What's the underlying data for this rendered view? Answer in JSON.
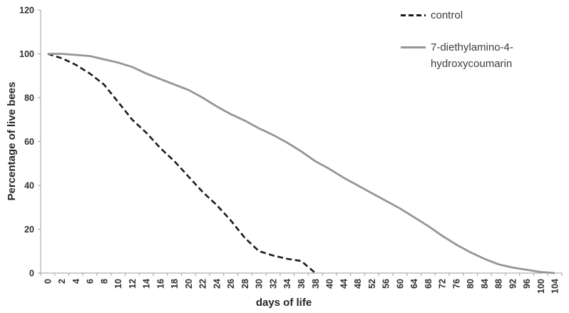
{
  "chart_data": {
    "type": "line",
    "title": "",
    "xlabel": "days of life",
    "ylabel": "Percentage of live bees",
    "ylim": [
      0,
      120
    ],
    "yticks": [
      0,
      20,
      40,
      60,
      80,
      100,
      120
    ],
    "grid": false,
    "legend_position": "top-right",
    "categories": [
      0,
      2,
      4,
      6,
      8,
      10,
      12,
      14,
      16,
      18,
      20,
      22,
      24,
      26,
      28,
      30,
      32,
      34,
      36,
      38,
      40,
      44,
      48,
      52,
      56,
      60,
      64,
      68,
      72,
      76,
      80,
      84,
      88,
      92,
      96,
      100,
      104
    ],
    "series": [
      {
        "name": "control",
        "line_style": "dashed",
        "color": "#1c1c1c",
        "values": [
          100,
          98,
          95,
          91,
          86,
          78,
          70,
          64,
          57,
          51,
          44,
          37,
          31,
          24,
          16,
          10,
          8,
          6.5,
          5.5,
          0,
          null,
          null,
          null,
          null,
          null,
          null,
          null,
          null,
          null,
          null,
          null,
          null,
          null,
          null,
          null,
          null,
          null
        ]
      },
      {
        "name": "7-diethylamino-4-hydroxycoumarin",
        "line_style": "solid",
        "color": "#969696",
        "values": [
          100,
          100,
          99.5,
          99,
          97.5,
          96,
          94,
          91,
          88.5,
          86,
          83.5,
          80,
          76,
          72.5,
          69.5,
          66,
          63,
          59.5,
          55.5,
          51,
          47.5,
          43.5,
          40,
          36.5,
          33,
          29.5,
          25.5,
          21.5,
          17,
          13,
          9.5,
          6.5,
          4,
          2.5,
          1.5,
          0.5,
          0
        ]
      }
    ],
    "colors": {
      "axis": "#9d9d9d",
      "tick_text": "#303030",
      "title_text": "#262626",
      "legend_text": "#3d3d3d",
      "background": "#ffffff"
    }
  }
}
